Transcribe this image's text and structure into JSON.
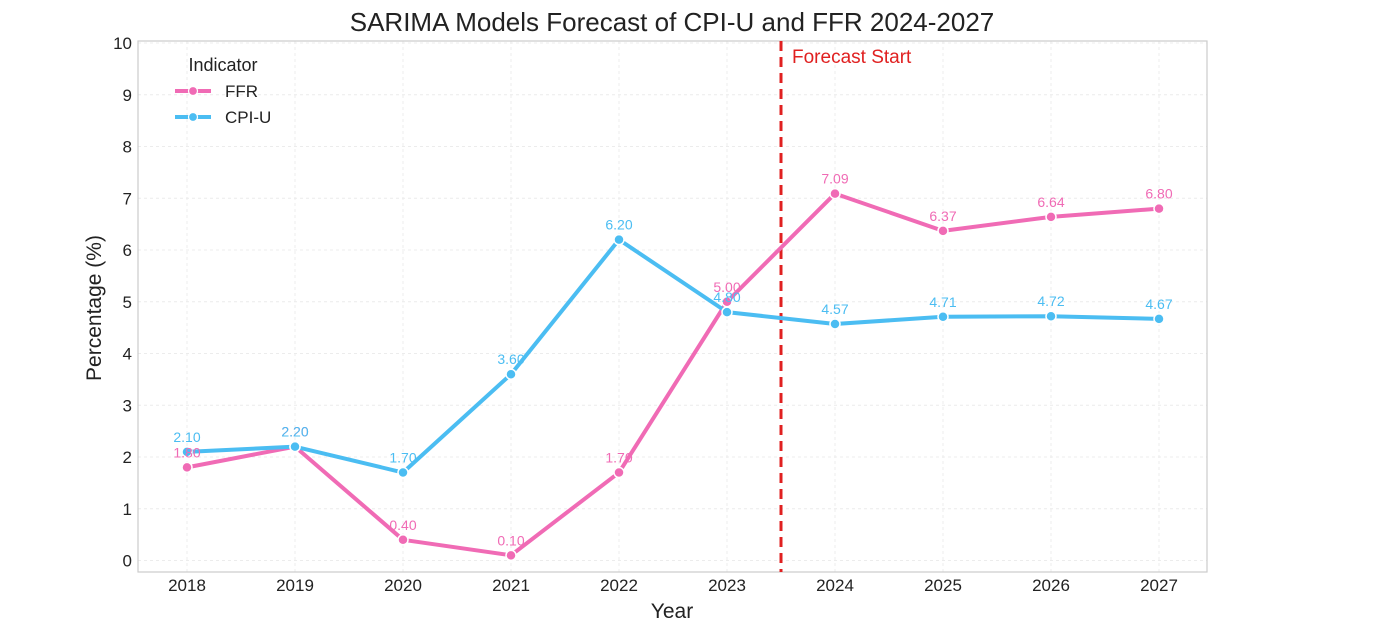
{
  "chart_data": {
    "type": "line",
    "title": "SARIMA Models Forecast of CPI-U and FFR 2024-2027",
    "xlabel": "Year",
    "ylabel": "Percentage (%)",
    "categories": [
      "2018",
      "2019",
      "2020",
      "2021",
      "2022",
      "2023",
      "2024",
      "2025",
      "2026",
      "2027"
    ],
    "ylim": [
      0,
      10
    ],
    "yticks": [
      "0",
      "1",
      "2",
      "3",
      "4",
      "5",
      "6",
      "7",
      "8",
      "9",
      "10"
    ],
    "grid": true,
    "legend": {
      "title": "Indicator",
      "placement": "top-left"
    },
    "series": [
      {
        "name": "FFR",
        "color": "#f06bb5",
        "values": [
          1.8,
          2.2,
          0.4,
          0.1,
          1.7,
          5.0,
          7.09,
          6.37,
          6.64,
          6.8
        ],
        "labels": [
          "1.80",
          "2.20",
          "0.40",
          "0.10",
          "1.70",
          "5.00",
          "7.09",
          "6.37",
          "6.64",
          "6.80"
        ]
      },
      {
        "name": "CPI-U",
        "color": "#4bbdf2",
        "values": [
          2.1,
          2.2,
          1.7,
          3.6,
          6.2,
          4.8,
          4.57,
          4.71,
          4.72,
          4.67
        ],
        "labels": [
          "2.10",
          "2.20",
          "1.70",
          "3.60",
          "6.20",
          "4.80",
          "4.57",
          "4.71",
          "4.72",
          "4.67"
        ]
      }
    ],
    "annotations": [
      {
        "text": "Forecast Start",
        "x": 2023.5,
        "style": "dashed-vertical-line",
        "color": "#e02020"
      }
    ]
  }
}
